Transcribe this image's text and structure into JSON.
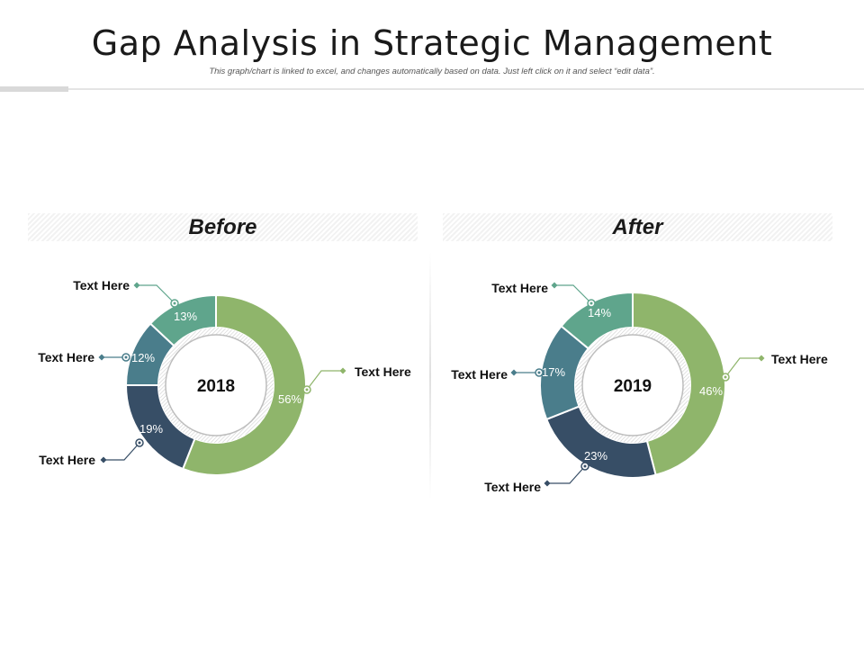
{
  "header": {
    "title": "Gap Analysis in Strategic Management",
    "subtitle": "This graph/chart is linked to excel, and changes automatically based on data. Just left click on it and select “edit data”."
  },
  "colors": {
    "green": "#8fb56b",
    "teal_light": "#5fa58c",
    "teal": "#4a7d8b",
    "navy": "#374e66"
  },
  "chart_data": [
    {
      "type": "pie",
      "title": "Before",
      "center_label": "2018",
      "series": [
        {
          "label": "Text Here",
          "value": 56,
          "display": "56%",
          "color": "#8fb56b"
        },
        {
          "label": "Text Here",
          "value": 19,
          "display": "19%",
          "color": "#374e66"
        },
        {
          "label": "Text Here",
          "value": 12,
          "display": "12%",
          "color": "#4a7d8b"
        },
        {
          "label": "Text Here",
          "value": 13,
          "display": "13%",
          "color": "#5fa58c"
        }
      ]
    },
    {
      "type": "pie",
      "title": "After",
      "center_label": "2019",
      "series": [
        {
          "label": "Text Here",
          "value": 46,
          "display": "46%",
          "color": "#8fb56b"
        },
        {
          "label": "Text Here",
          "value": 23,
          "display": "23%",
          "color": "#374e66"
        },
        {
          "label": "Text Here",
          "value": 17,
          "display": "17%",
          "color": "#4a7d8b"
        },
        {
          "label": "Text Here",
          "value": 14,
          "display": "14%",
          "color": "#5fa58c"
        }
      ]
    }
  ]
}
